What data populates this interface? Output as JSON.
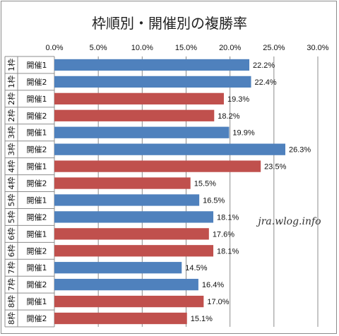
{
  "chart_data": {
    "type": "bar",
    "orientation": "horizontal",
    "title": "枠順別・開催別の複勝率",
    "xlim": [
      0,
      30
    ],
    "x_ticks": [
      "0.0%",
      "5.0%",
      "10.0%",
      "15.0%",
      "20.0%",
      "25.0%",
      "30.0%"
    ],
    "x_axis_position": "top",
    "grid": true,
    "watermark": "jra.wlog.info",
    "colors": {
      "blue": "#4f81bd",
      "red": "#c0504d"
    },
    "rows": [
      {
        "waku": "1枠",
        "kaisai": "開催1",
        "value": 22.2,
        "label": "22.2%",
        "color": "blue"
      },
      {
        "waku": "1枠",
        "kaisai": "開催2",
        "value": 22.4,
        "label": "22.4%",
        "color": "blue"
      },
      {
        "waku": "2枠",
        "kaisai": "開催1",
        "value": 19.3,
        "label": "19.3%",
        "color": "red"
      },
      {
        "waku": "2枠",
        "kaisai": "開催2",
        "value": 18.2,
        "label": "18.2%",
        "color": "red"
      },
      {
        "waku": "3枠",
        "kaisai": "開催1",
        "value": 19.9,
        "label": "19.9%",
        "color": "blue"
      },
      {
        "waku": "3枠",
        "kaisai": "開催2",
        "value": 26.3,
        "label": "26.3%",
        "color": "blue"
      },
      {
        "waku": "4枠",
        "kaisai": "開催1",
        "value": 23.5,
        "label": "23.5%",
        "color": "red"
      },
      {
        "waku": "4枠",
        "kaisai": "開催2",
        "value": 15.5,
        "label": "15.5%",
        "color": "red"
      },
      {
        "waku": "5枠",
        "kaisai": "開催1",
        "value": 16.5,
        "label": "16.5%",
        "color": "blue"
      },
      {
        "waku": "5枠",
        "kaisai": "開催2",
        "value": 18.1,
        "label": "18.1%",
        "color": "blue"
      },
      {
        "waku": "6枠",
        "kaisai": "開催1",
        "value": 17.6,
        "label": "17.6%",
        "color": "red"
      },
      {
        "waku": "6枠",
        "kaisai": "開催2",
        "value": 18.1,
        "label": "18.1%",
        "color": "red"
      },
      {
        "waku": "7枠",
        "kaisai": "開催1",
        "value": 14.5,
        "label": "14.5%",
        "color": "blue"
      },
      {
        "waku": "7枠",
        "kaisai": "開催2",
        "value": 16.4,
        "label": "16.4%",
        "color": "blue"
      },
      {
        "waku": "8枠",
        "kaisai": "開催1",
        "value": 17.0,
        "label": "17.0%",
        "color": "red"
      },
      {
        "waku": "8枠",
        "kaisai": "開催2",
        "value": 15.1,
        "label": "15.1%",
        "color": "red"
      }
    ]
  }
}
